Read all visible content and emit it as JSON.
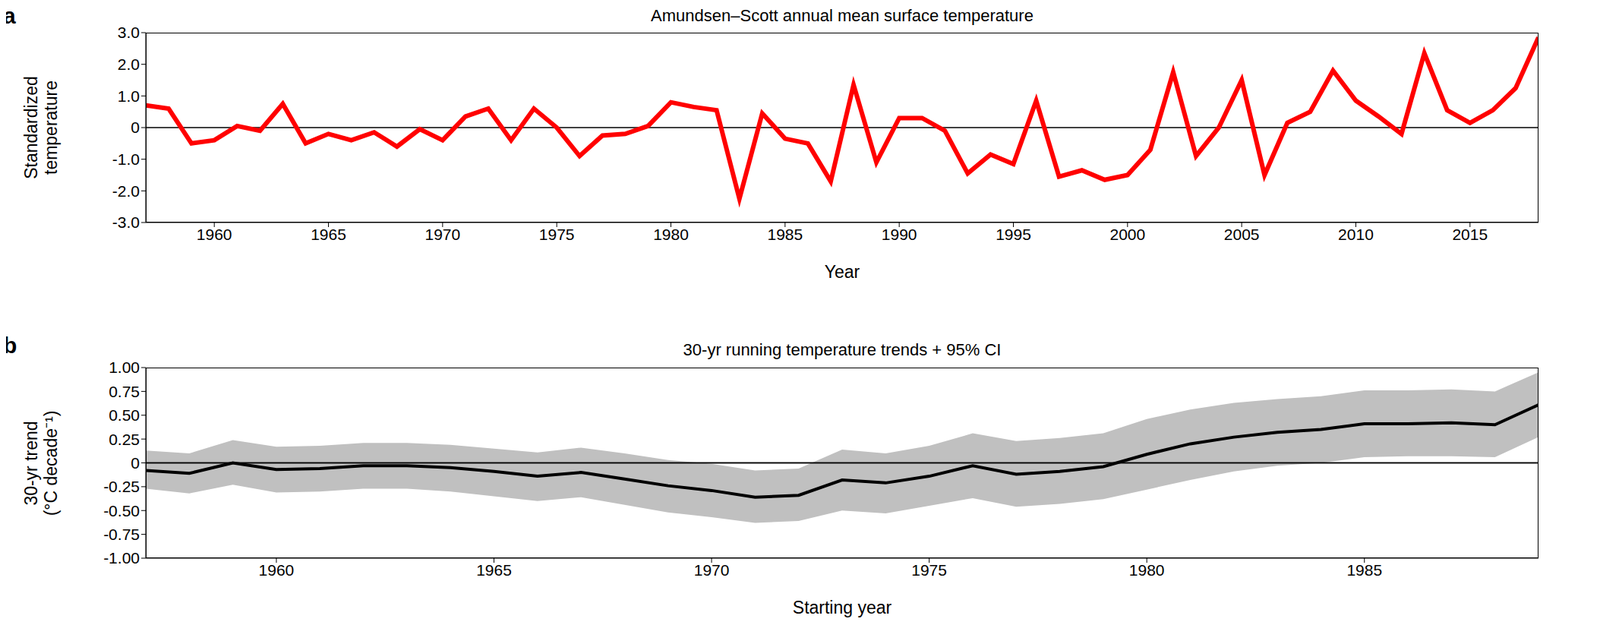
{
  "chart_data": [
    {
      "type": "line",
      "panel_label": "a",
      "title": "Amundsen–Scott annual mean surface temperature",
      "xlabel": "Year",
      "ylabel": "Standardized\ntemperature",
      "x": [
        1957,
        1958,
        1959,
        1960,
        1961,
        1962,
        1963,
        1964,
        1965,
        1966,
        1967,
        1968,
        1969,
        1970,
        1971,
        1972,
        1973,
        1974,
        1975,
        1976,
        1977,
        1978,
        1979,
        1980,
        1981,
        1982,
        1983,
        1984,
        1985,
        1986,
        1987,
        1988,
        1989,
        1990,
        1991,
        1992,
        1993,
        1994,
        1995,
        1996,
        1997,
        1998,
        1999,
        2000,
        2001,
        2002,
        2003,
        2004,
        2005,
        2006,
        2007,
        2008,
        2009,
        2010,
        2011,
        2012,
        2013,
        2014,
        2015,
        2016,
        2017,
        2018
      ],
      "values": [
        0.7,
        0.6,
        -0.5,
        -0.4,
        0.05,
        -0.1,
        0.75,
        -0.5,
        -0.2,
        -0.4,
        -0.15,
        -0.6,
        -0.05,
        -0.4,
        0.35,
        0.6,
        -0.4,
        0.6,
        0.0,
        -0.9,
        -0.25,
        -0.2,
        0.05,
        0.8,
        0.65,
        0.55,
        -2.25,
        0.45,
        -0.35,
        -0.5,
        -1.7,
        1.35,
        -1.1,
        0.3,
        0.3,
        -0.1,
        -1.45,
        -0.85,
        -1.15,
        0.85,
        -1.55,
        -1.35,
        -1.65,
        -1.5,
        -0.7,
        1.75,
        -0.9,
        0.0,
        1.5,
        -1.5,
        0.15,
        0.5,
        1.8,
        0.85,
        0.35,
        -0.2,
        2.35,
        0.55,
        0.15,
        0.55,
        1.25,
        2.85
      ],
      "color": "#ff0000",
      "xlim": [
        1957,
        2018
      ],
      "xticks": [
        1960,
        1965,
        1970,
        1975,
        1980,
        1985,
        1990,
        1995,
        2000,
        2005,
        2010,
        2015
      ],
      "ylim": [
        -3,
        3
      ],
      "yticks": [
        {
          "value": -3,
          "label": "-3.0"
        },
        {
          "value": -2,
          "label": "-2.0"
        },
        {
          "value": -1,
          "label": "-1.0"
        },
        0,
        {
          "value": 1,
          "label": "1.0"
        },
        {
          "value": 2,
          "label": "2.0"
        },
        {
          "value": 3,
          "label": "3.0"
        }
      ],
      "reference_line": 0,
      "grid": false
    },
    {
      "type": "line",
      "panel_label": "b",
      "title": "30-yr running temperature trends + 95% CI",
      "xlabel": "Starting year",
      "ylabel": "30-yr trend\n(°C decade⁻¹)",
      "x": [
        1957,
        1958,
        1959,
        1960,
        1961,
        1962,
        1963,
        1964,
        1965,
        1966,
        1967,
        1968,
        1969,
        1970,
        1971,
        1972,
        1973,
        1974,
        1975,
        1976,
        1977,
        1978,
        1979,
        1980,
        1981,
        1982,
        1983,
        1984,
        1985,
        1986,
        1987,
        1988,
        1989
      ],
      "values": [
        -0.08,
        -0.11,
        0.0,
        -0.07,
        -0.06,
        -0.03,
        -0.03,
        -0.05,
        -0.09,
        -0.14,
        -0.1,
        -0.17,
        -0.24,
        -0.29,
        -0.36,
        -0.34,
        -0.18,
        -0.21,
        -0.14,
        -0.03,
        -0.12,
        -0.09,
        -0.04,
        0.09,
        0.2,
        0.27,
        0.32,
        0.35,
        0.41,
        0.41,
        0.42,
        0.4,
        0.61
      ],
      "ci_lower": [
        -0.27,
        -0.32,
        -0.23,
        -0.31,
        -0.3,
        -0.27,
        -0.27,
        -0.3,
        -0.35,
        -0.4,
        -0.36,
        -0.44,
        -0.52,
        -0.57,
        -0.63,
        -0.61,
        -0.5,
        -0.53,
        -0.45,
        -0.37,
        -0.46,
        -0.43,
        -0.38,
        -0.28,
        -0.18,
        -0.09,
        -0.03,
        0.0,
        0.06,
        0.07,
        0.07,
        0.06,
        0.27
      ],
      "ci_upper": [
        0.13,
        0.1,
        0.24,
        0.17,
        0.18,
        0.21,
        0.21,
        0.19,
        0.15,
        0.11,
        0.16,
        0.1,
        0.03,
        -0.01,
        -0.08,
        -0.06,
        0.14,
        0.1,
        0.18,
        0.31,
        0.23,
        0.26,
        0.31,
        0.46,
        0.56,
        0.63,
        0.67,
        0.7,
        0.76,
        0.76,
        0.77,
        0.75,
        0.95
      ],
      "color": "#000000",
      "ci_color": "#c0c0c0",
      "xlim": [
        1957,
        1989
      ],
      "xticks": [
        1960,
        1965,
        1970,
        1975,
        1980,
        1985
      ],
      "ylim": [
        -1,
        1
      ],
      "yticks": [
        {
          "value": -1,
          "label": "-1.00"
        },
        -0.75,
        {
          "value": -0.5,
          "label": "-0.50"
        },
        -0.25,
        0,
        0.25,
        {
          "value": 0.5,
          "label": "0.50"
        },
        0.75,
        {
          "value": 1,
          "label": "1.00"
        }
      ],
      "reference_line": 0,
      "grid": false
    }
  ]
}
